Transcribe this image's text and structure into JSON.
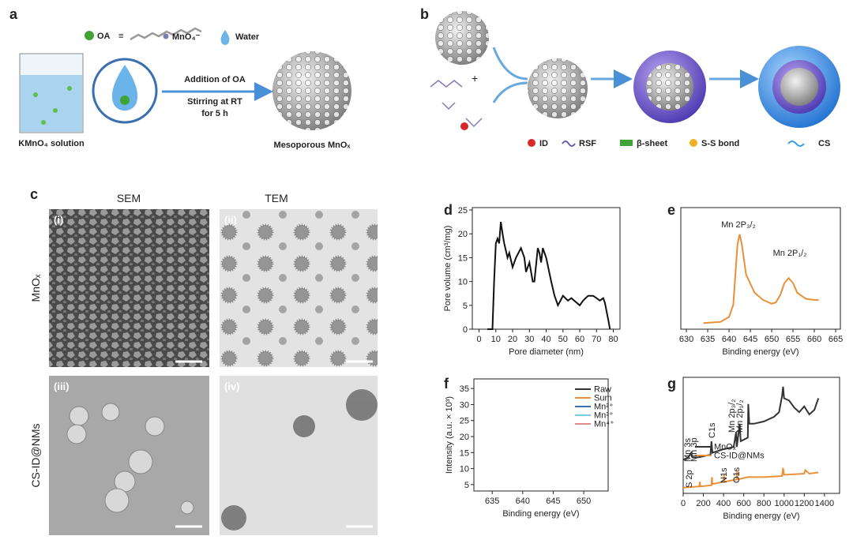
{
  "panel_labels": [
    "a",
    "b",
    "c",
    "d",
    "e",
    "f",
    "g"
  ],
  "scheme_a": {
    "legend": [
      "OA",
      "≡",
      "MnO₄⁻",
      "Water"
    ],
    "beaker_label": "KMnO₄ solution",
    "steps": [
      "Addition of OA",
      "Stirring at RT",
      "for 5 h"
    ],
    "product": "Mesoporous MnOₓ"
  },
  "scheme_b": {
    "legend": [
      "ID",
      "RSF",
      "β-sheet",
      "S-S bond",
      "CS"
    ]
  },
  "micrographs": {
    "columns": [
      "SEM",
      "TEM"
    ],
    "rows": [
      "MnOₓ",
      "CS-ID@NMs"
    ],
    "labels": [
      "(i)",
      "(ii)",
      "(iii)",
      "(iv)"
    ]
  },
  "chart_data": [
    {
      "type": "line",
      "xlabel": "Pore diameter (nm)",
      "ylabel": "Pore volume (cm³/mg)",
      "xlim": [
        -4,
        84
      ],
      "ylim": [
        0,
        25.5
      ],
      "xticks": [
        0,
        10,
        20,
        30,
        40,
        50,
        60,
        70,
        80
      ],
      "yticks": [
        0,
        5,
        10,
        15,
        20,
        25
      ],
      "color": "#111111",
      "x": [
        5,
        8,
        9,
        10,
        11,
        12,
        13,
        14,
        15,
        17,
        18,
        20,
        22,
        25,
        27,
        28,
        30,
        32,
        33,
        35,
        36,
        37,
        38,
        40,
        43,
        45,
        46,
        47,
        50,
        53,
        55,
        60,
        62,
        65,
        68,
        70,
        72,
        74,
        75,
        77,
        78
      ],
      "values": [
        0,
        0,
        10,
        18,
        19,
        18,
        22.5,
        20,
        18,
        15,
        16,
        13,
        15,
        17,
        15,
        12,
        14,
        10,
        10,
        17,
        16,
        14,
        17,
        15,
        10,
        7,
        6,
        5,
        7,
        6,
        6.5,
        5,
        6,
        7,
        7,
        6.5,
        6,
        6.5,
        5.5,
        2,
        0
      ]
    },
    {
      "type": "line",
      "xlabel": "Binding energy (eV)",
      "xlim": [
        628.7,
        666.1
      ],
      "ylim": [
        0,
        100
      ],
      "xticks": [
        630,
        635,
        640,
        645,
        650,
        655,
        660,
        665
      ],
      "color": "#e8913a",
      "annotations": [
        "Mn 2P₃/₂",
        "Mn 2P₁/₂"
      ],
      "x": [
        634,
        638,
        640,
        641,
        642,
        642.5,
        643,
        644,
        646,
        648,
        650,
        651,
        652,
        653,
        654,
        655,
        656,
        658,
        660,
        661
      ],
      "values": [
        5,
        6,
        10,
        20,
        70,
        78,
        70,
        45,
        30,
        24,
        21,
        22,
        28,
        38,
        42,
        38,
        30,
        25,
        24,
        24
      ]
    },
    {
      "type": "line",
      "xlabel": "Binding energy (eV)",
      "ylabel": "Intensity (a.u. × 10³)",
      "xlim": [
        632,
        654
      ],
      "ylim": [
        3,
        38
      ],
      "xticks": [
        635,
        640,
        645,
        650
      ],
      "yticks": [
        5,
        10,
        15,
        20,
        25,
        30,
        35
      ],
      "legend": "upper right",
      "x": [
        635,
        637,
        639,
        640,
        641,
        641.5,
        642,
        642.5,
        643,
        643.5,
        644,
        645,
        646,
        647,
        648,
        649,
        650,
        651
      ],
      "series": [
        {
          "name": "Raw",
          "color": "#333333",
          "values": [
            6,
            6.2,
            7.5,
            10,
            20,
            27,
            33,
            33.5,
            31,
            27,
            23,
            18,
            16,
            15,
            14.5,
            14,
            13.5,
            14
          ]
        },
        {
          "name": "Sum",
          "color": "#e8913a",
          "values": [
            6,
            6.2,
            7.5,
            10,
            20,
            28,
            33.5,
            34,
            31,
            27,
            23,
            18,
            16,
            15,
            14.5,
            14.2,
            14,
            14
          ]
        },
        {
          "name": "Mn²⁺",
          "color": "#3a6fb0",
          "values": [
            6,
            6.2,
            7.5,
            10,
            15,
            16.5,
            15.5,
            14,
            13,
            12.5,
            12.5,
            13.5,
            14,
            14.2,
            14.2,
            14.2,
            14,
            14
          ]
        },
        {
          "name": "Mn³⁺",
          "color": "#7ec8e3",
          "values": [
            6,
            6.1,
            6.5,
            7.5,
            12,
            18,
            24,
            26,
            23,
            18,
            15,
            14,
            14,
            14,
            14,
            14,
            14,
            14
          ]
        },
        {
          "name": "Mn⁴⁺",
          "color": "#e08a8a",
          "values": [
            6,
            6,
            6.2,
            6.5,
            8,
            10,
            13,
            16,
            19,
            21.5,
            23,
            20,
            16,
            14.5,
            14.2,
            14,
            14,
            14
          ]
        }
      ]
    },
    {
      "type": "line",
      "xlabel": "Binding energy (eV)",
      "xlim": [
        0,
        1550
      ],
      "ylim": [
        0,
        100
      ],
      "xticks": [
        0,
        200,
        400,
        600,
        800,
        1000,
        1200,
        1400
      ],
      "legend": "center right",
      "annotations": [
        "Mn 3s",
        "Mn 3p",
        "C1s",
        "Mn 2p₃/₂",
        "Mn 2p₁/₂",
        "S 2p",
        "N1s",
        "O1s"
      ],
      "series": [
        {
          "name": "MnOₓ",
          "color": "#333333",
          "x": [
            0,
            50,
            80,
            90,
            150,
            250,
            270,
            280,
            290,
            400,
            500,
            525,
            530,
            535,
            560,
            570,
            640,
            645,
            655,
            700,
            800,
            900,
            950,
            980,
            990,
            1000,
            1050,
            1100,
            1150,
            1200,
            1250,
            1300,
            1340
          ],
          "values": [
            29,
            31,
            35,
            31,
            31,
            33,
            33,
            45,
            35,
            38,
            40,
            53,
            40,
            42,
            60,
            45,
            48,
            77,
            60,
            60,
            62,
            66,
            70,
            84,
            92,
            82,
            80,
            74,
            70,
            75,
            68,
            72,
            82
          ]
        },
        {
          "name": "CS-ID@NMs",
          "color": "#e8913a",
          "x": [
            0,
            160,
            165,
            170,
            280,
            285,
            290,
            400,
            405,
            410,
            530,
            535,
            540,
            640,
            800,
            980,
            990,
            1000,
            1200,
            1210,
            1250,
            1340
          ],
          "values": [
            5,
            6,
            10,
            6,
            7,
            14,
            8,
            10,
            16,
            10,
            12,
            20,
            12,
            14,
            14,
            15,
            22,
            16,
            17,
            20,
            17,
            18
          ]
        }
      ]
    }
  ]
}
